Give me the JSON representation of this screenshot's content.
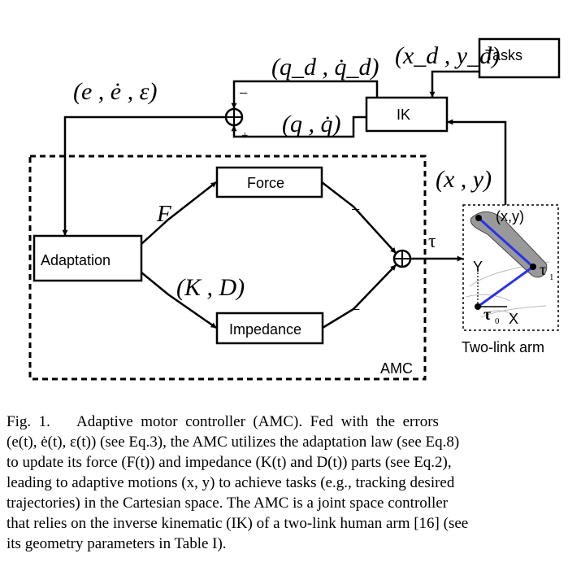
{
  "diagram": {
    "blocks": {
      "tasks": "Tasks",
      "ik": "IK",
      "force": "Force",
      "impedance": "Impedance",
      "adaptation": "Adaptation",
      "amc": "AMC",
      "arm_caption": "Two-link arm"
    },
    "signals": {
      "desired_xy": "(x_d , y_d)",
      "desired_q": "(q_d , q̇_d)",
      "actual_q": "(q , q̇)",
      "errors": "(e , ė , ε)",
      "actual_xy": "(x , y)",
      "force_signal": "F",
      "impedance_signal": "(K , D)",
      "torque": "τ"
    },
    "signs": {
      "minus_top": "−",
      "plus_bottom": "+",
      "minus_force": "−",
      "minus_impedance": "−"
    },
    "arm_labels": {
      "endpoint": "(x,y)",
      "tau1": "τ",
      "tau1_sub": "1",
      "tau0": "τ",
      "tau0_sub": "0",
      "y_axis": "Y",
      "x_axis": "X"
    }
  },
  "caption": {
    "line1": "Fig.  1.       Adaptive  motor  controller  (AMC).  Fed  with  the  errors",
    "line2": "(e(t), ė(t), ε(t)) (see Eq.3), the AMC utilizes the adaptation law (see Eq.8)",
    "line3": "to update its force (F(t)) and impedance (K(t) and D(t)) parts (see Eq.2),",
    "line4": "leading to adaptive motions (x, y) to achieve tasks (e.g., tracking desired",
    "line5": "trajectories) in the Cartesian space. The AMC is a joint space controller",
    "line6": "that relies on the inverse kinematic (IK) of a two-link human arm [16] (see",
    "line7": "its geometry parameters in Table I)."
  }
}
